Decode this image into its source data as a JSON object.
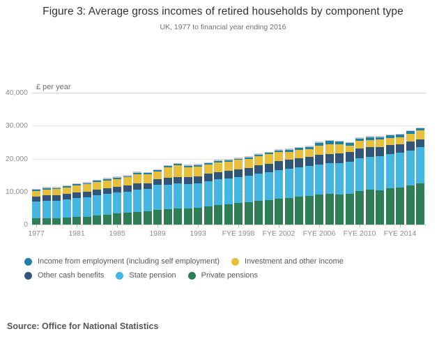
{
  "header": {
    "title": "Figure 3: Average gross incomes of retired households by component type",
    "subtitle": "UK, 1977 to financial year ending 2016"
  },
  "chart_data": {
    "type": "bar",
    "stacked": true,
    "unit_label": "£ per year",
    "ylim": [
      0,
      40000
    ],
    "ytick_interval": 10000,
    "ytick_labels": [
      "0",
      "10,000",
      "20,000",
      "30,000",
      "40,000"
    ],
    "grid": "horizontal",
    "categories": [
      "1977",
      "1978",
      "1979",
      "1980",
      "1981",
      "1982",
      "1983",
      "1984",
      "1985",
      "1986",
      "1987",
      "1988",
      "1989",
      "1990",
      "1991",
      "1992",
      "1993",
      "FYE 1995",
      "FYE 1996",
      "FYE 1997",
      "FYE 1998",
      "FYE 1999",
      "FYE 2000",
      "FYE 2001",
      "FYE 2002",
      "FYE 2003",
      "FYE 2004",
      "FYE 2005",
      "FYE 2006",
      "FYE 2007",
      "FYE 2008",
      "FYE 2009",
      "FYE 2010",
      "FYE 2011",
      "FYE 2012",
      "FYE 2013",
      "FYE 2014",
      "FYE 2015",
      "FYE 2016"
    ],
    "xticks_shown": {
      "indices": [
        0,
        4,
        8,
        12,
        16,
        20,
        24,
        28,
        32,
        36
      ],
      "labels": [
        "1977",
        "1981",
        "1985",
        "1989",
        "1993",
        "FYE 1998",
        "FYE 2002",
        "FYE 2006",
        "FYE 2010",
        "FYE 2014"
      ]
    },
    "series": [
      {
        "name": "Private pensions",
        "color": "#2e7d54",
        "values": [
          1950,
          2000,
          2000,
          2100,
          2250,
          2400,
          2700,
          2950,
          3300,
          3500,
          3800,
          4000,
          4400,
          4600,
          4800,
          4900,
          5000,
          5500,
          5900,
          6200,
          6600,
          6800,
          7200,
          7500,
          7900,
          8100,
          8400,
          8700,
          9150,
          9350,
          9200,
          9300,
          10200,
          10600,
          10350,
          10950,
          11300,
          11800,
          12550
        ]
      },
      {
        "name": "State pension",
        "color": "#45b5e2",
        "values": [
          5000,
          5250,
          5300,
          5500,
          5700,
          5850,
          6100,
          6300,
          6400,
          6500,
          6800,
          6700,
          7600,
          7500,
          7600,
          7400,
          7400,
          7700,
          7800,
          7800,
          7900,
          8000,
          8300,
          8400,
          8700,
          8800,
          8900,
          9000,
          9050,
          9200,
          9500,
          9700,
          9900,
          10000,
          10300,
          10400,
          10400,
          10700,
          10850
        ]
      },
      {
        "name": "Other cash benefits",
        "color": "#32557a",
        "values": [
          1550,
          1600,
          1600,
          1650,
          1700,
          1750,
          1800,
          1800,
          1800,
          1850,
          1850,
          1850,
          1850,
          2000,
          2100,
          2150,
          2150,
          2200,
          2250,
          2250,
          2250,
          2300,
          2400,
          2500,
          2700,
          2750,
          2800,
          2850,
          2900,
          2900,
          2950,
          3000,
          2900,
          2850,
          2900,
          2800,
          2700,
          2600,
          2400
        ]
      },
      {
        "name": "Investment and other income",
        "color": "#e8bf3c",
        "values": [
          1600,
          1800,
          1800,
          2000,
          2150,
          2200,
          2300,
          2350,
          2300,
          2450,
          2850,
          2650,
          2250,
          3200,
          3450,
          2950,
          2950,
          2750,
          2950,
          2850,
          2850,
          2850,
          2900,
          2900,
          2650,
          2450,
          2500,
          2350,
          2750,
          3000,
          2650,
          2000,
          2350,
          2250,
          2250,
          2200,
          2150,
          2500,
          2700
        ]
      },
      {
        "name": "Income from employment (including self employment)",
        "color": "#1f80a8",
        "values": [
          400,
          400,
          400,
          400,
          400,
          400,
          400,
          400,
          400,
          400,
          400,
          400,
          400,
          400,
          400,
          400,
          550,
          400,
          400,
          400,
          400,
          400,
          450,
          500,
          600,
          600,
          650,
          700,
          1000,
          950,
          800,
          700,
          800,
          800,
          700,
          700,
          700,
          750,
          700
        ]
      }
    ],
    "legend_position": "bottom"
  },
  "legend": {
    "rows": [
      [
        {
          "label": "Income from employment (including self employment)",
          "color": "#1f80a8"
        },
        {
          "label": "Investment and other income",
          "color": "#e8bf3c"
        }
      ],
      [
        {
          "label": "Other cash benefits",
          "color": "#32557a"
        },
        {
          "label": "State pension",
          "color": "#45b5e2"
        },
        {
          "label": "Private pensions",
          "color": "#2e7d54"
        }
      ]
    ]
  },
  "footer": {
    "source": "Source: Office for National Statistics"
  }
}
